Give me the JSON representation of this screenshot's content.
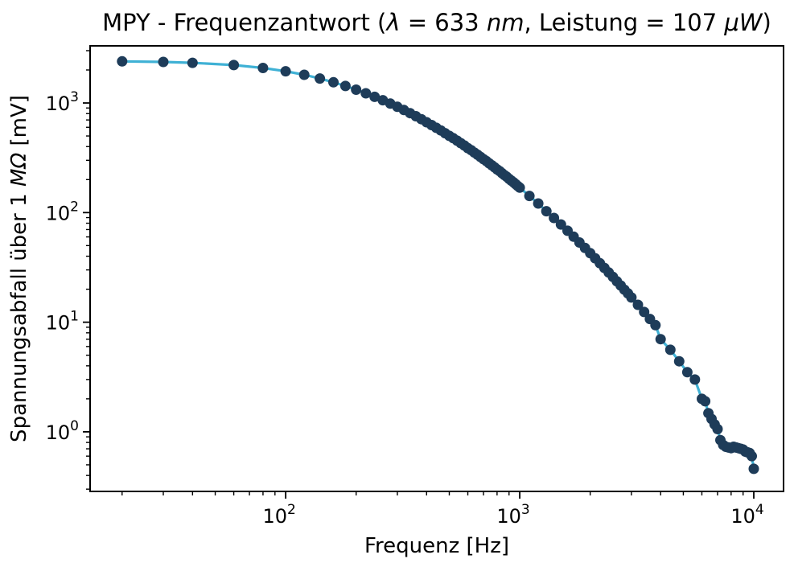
{
  "chart_data": {
    "type": "line",
    "title": "MPY - Frequenzantwort (λ = 633 nm, Leistung = 107 μW)",
    "title_segments": [
      {
        "text": "MPY - Frequenzantwort (",
        "italic": false
      },
      {
        "text": "λ",
        "italic": true
      },
      {
        "text": " = 633 ",
        "italic": false
      },
      {
        "text": "nm",
        "italic": true
      },
      {
        "text": ", Leistung = 107 ",
        "italic": false
      },
      {
        "text": "μW",
        "italic": true
      },
      {
        "text": ")",
        "italic": false
      }
    ],
    "xlabel": "Frequenz [Hz]",
    "ylabel": "Spannungsabfall über 1 MΩ [mV]",
    "ylabel_segments": [
      {
        "text": "Spannungsabfall über 1 ",
        "italic": false
      },
      {
        "text": "MΩ",
        "italic": true
      },
      {
        "text": " [mV]",
        "italic": false
      }
    ],
    "x_axis_scale": "log",
    "y_axis_scale": "log",
    "xlim": [
      14.6,
      13400
    ],
    "ylim": [
      0.286,
      3320
    ],
    "grid": false,
    "legend": "none",
    "line_color": "#3fb1d5",
    "marker_color": "#1e3c59",
    "x_major_ticks": [
      {
        "value": 100,
        "base": "10",
        "exp": "2"
      },
      {
        "value": 1000,
        "base": "10",
        "exp": "3"
      },
      {
        "value": 10000,
        "base": "10",
        "exp": "4"
      }
    ],
    "y_major_ticks": [
      {
        "value": 1,
        "base": "10",
        "exp": "0"
      },
      {
        "value": 10,
        "base": "10",
        "exp": "1"
      },
      {
        "value": 100,
        "base": "10",
        "exp": "2"
      },
      {
        "value": 1000,
        "base": "10",
        "exp": "3"
      }
    ],
    "x": [
      20,
      30,
      40,
      60,
      80,
      100,
      120,
      140,
      160,
      180,
      200,
      220,
      240,
      260,
      280,
      300,
      320,
      340,
      360,
      380,
      400,
      420,
      440,
      460,
      480,
      500,
      520,
      540,
      560,
      580,
      600,
      620,
      640,
      660,
      680,
      700,
      720,
      740,
      760,
      780,
      800,
      820,
      840,
      860,
      880,
      900,
      920,
      940,
      960,
      980,
      1000,
      1100,
      1200,
      1300,
      1400,
      1500,
      1600,
      1700,
      1800,
      1900,
      2000,
      2100,
      2200,
      2300,
      2400,
      2500,
      2600,
      2700,
      2800,
      2900,
      3000,
      3200,
      3400,
      3600,
      3800,
      4000,
      4400,
      4800,
      5200,
      5600,
      6000,
      6200,
      6400,
      6600,
      6800,
      7000,
      7200,
      7400,
      7600,
      7800,
      8000,
      8200,
      8400,
      8600,
      8800,
      9000,
      9200,
      9400,
      9600,
      9800,
      10000
    ],
    "y": [
      2398,
      2367,
      2326,
      2218,
      2087,
      1947,
      1806,
      1671,
      1545,
      1428,
      1322,
      1226,
      1138,
      1059,
      987,
      922,
      862,
      807,
      757,
      711,
      667,
      629,
      594,
      561,
      530,
      501,
      477,
      453,
      430,
      409,
      388,
      371,
      353,
      337,
      322,
      307,
      295,
      282,
      270,
      259,
      248,
      239,
      229,
      220,
      212,
      203,
      196,
      189,
      182,
      175,
      169,
      142,
      121,
      103,
      89.4,
      77.9,
      68.3,
      60.3,
      53.4,
      47.6,
      42.6,
      38.3,
      34.5,
      31.3,
      28.4,
      25.9,
      23.6,
      21.6,
      19.8,
      18.3,
      16.8,
      14.4,
      12.4,
      10.7,
      9.4,
      7.0,
      5.6,
      4.4,
      3.5,
      3.0,
      2.0,
      1.9,
      1.48,
      1.31,
      1.17,
      1.06,
      0.84,
      0.76,
      0.73,
      0.72,
      0.71,
      0.73,
      0.72,
      0.71,
      0.7,
      0.69,
      0.66,
      0.65,
      0.64,
      0.6,
      0.46
    ]
  }
}
